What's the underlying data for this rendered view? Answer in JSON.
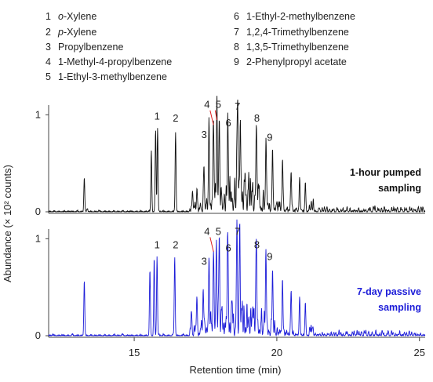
{
  "legend": {
    "items": [
      {
        "num": "1",
        "name": "o-Xylene"
      },
      {
        "num": "2",
        "name": "p-Xylene"
      },
      {
        "num": "3",
        "name": "Propylbenzene"
      },
      {
        "num": "4",
        "name": "1-Methyl-4-propylbenzene"
      },
      {
        "num": "5",
        "name": "1-Ethyl-3-methylbenzene"
      },
      {
        "num": "6",
        "name": "1-Ethyl-2-methylbenzene"
      },
      {
        "num": "7",
        "name": "1,2,4-Trimethylbenzene"
      },
      {
        "num": "8",
        "name": "1,3,5-Trimethylbenzene"
      },
      {
        "num": "9",
        "name": "2-Phenylpropyl acetate"
      }
    ]
  },
  "chart_data": {
    "type": "line",
    "xlabel": "Retention time (min)",
    "ylabel": "Abundance (× 10² counts)",
    "xlim": [
      12,
      25.2
    ],
    "x_ticks": [
      "15",
      "20",
      "25"
    ],
    "x_tick_values": [
      15,
      20,
      25
    ],
    "panels": [
      {
        "title_line1": "1-hour pumped",
        "title_line2": "sampling",
        "color": "#111111",
        "ylim": [
          0,
          1.1
        ],
        "y_ticks": [
          "0",
          "1"
        ],
        "y_tick_values": [
          0,
          1
        ],
        "peaks": [
          {
            "x": 13.25,
            "y": 0.36
          },
          {
            "x": 13.35,
            "y": 0.02
          },
          {
            "x": 15.6,
            "y": 0.63
          },
          {
            "x": 15.75,
            "y": 0.85
          },
          {
            "x": 15.82,
            "y": 0.87
          },
          {
            "x": 16.45,
            "y": 0.83
          },
          {
            "x": 17.05,
            "y": 0.15
          },
          {
            "x": 17.2,
            "y": 0.22
          },
          {
            "x": 17.45,
            "y": 0.35
          },
          {
            "x": 17.62,
            "y": 0.73
          },
          {
            "x": 17.78,
            "y": 0.88
          },
          {
            "x": 17.9,
            "y": 0.93
          },
          {
            "x": 17.98,
            "y": 0.9
          },
          {
            "x": 18.28,
            "y": 0.83
          },
          {
            "x": 18.62,
            "y": 0.98
          },
          {
            "x": 18.72,
            "y": 0.9
          },
          {
            "x": 19.28,
            "y": 0.88
          },
          {
            "x": 19.62,
            "y": 0.73
          },
          {
            "x": 19.85,
            "y": 0.65
          },
          {
            "x": 20.2,
            "y": 0.5
          },
          {
            "x": 20.5,
            "y": 0.4
          },
          {
            "x": 20.8,
            "y": 0.35
          },
          {
            "x": 21.0,
            "y": 0.3
          }
        ],
        "labels": [
          {
            "text": "1",
            "x": 15.8,
            "y": 0.95
          },
          {
            "text": "2",
            "x": 16.45,
            "y": 0.93
          },
          {
            "text": "3",
            "x": 17.45,
            "y": 0.76
          },
          {
            "text": "4",
            "x": 17.55,
            "y": 1.07
          },
          {
            "text": "5",
            "x": 17.95,
            "y": 1.07
          },
          {
            "text": "6",
            "x": 18.3,
            "y": 0.88
          },
          {
            "text": "7",
            "x": 18.62,
            "y": 1.05
          },
          {
            "text": "8",
            "x": 19.3,
            "y": 0.93
          },
          {
            "text": "9",
            "x": 19.75,
            "y": 0.73
          }
        ]
      },
      {
        "title_line1": "7-day passive",
        "title_line2": "sampling",
        "color": "#1c1cd8",
        "ylim": [
          0,
          1.1
        ],
        "y_ticks": [
          "0",
          "1"
        ],
        "y_tick_values": [
          0,
          1
        ],
        "peaks": [
          {
            "x": 13.25,
            "y": 0.58
          },
          {
            "x": 15.55,
            "y": 0.67
          },
          {
            "x": 15.7,
            "y": 0.8
          },
          {
            "x": 15.8,
            "y": 0.82
          },
          {
            "x": 16.42,
            "y": 0.82
          },
          {
            "x": 17.0,
            "y": 0.22
          },
          {
            "x": 17.2,
            "y": 0.3
          },
          {
            "x": 17.42,
            "y": 0.45
          },
          {
            "x": 17.62,
            "y": 0.73
          },
          {
            "x": 17.78,
            "y": 0.85
          },
          {
            "x": 17.88,
            "y": 0.9
          },
          {
            "x": 17.98,
            "y": 0.92
          },
          {
            "x": 18.28,
            "y": 0.83
          },
          {
            "x": 18.6,
            "y": 1.0
          },
          {
            "x": 18.7,
            "y": 0.92
          },
          {
            "x": 19.28,
            "y": 0.87
          },
          {
            "x": 19.62,
            "y": 0.78
          },
          {
            "x": 19.85,
            "y": 0.65
          },
          {
            "x": 20.2,
            "y": 0.55
          },
          {
            "x": 20.5,
            "y": 0.45
          },
          {
            "x": 20.8,
            "y": 0.4
          },
          {
            "x": 21.0,
            "y": 0.33
          }
        ],
        "labels": [
          {
            "text": "1",
            "x": 15.8,
            "y": 0.9
          },
          {
            "text": "2",
            "x": 16.45,
            "y": 0.9
          },
          {
            "text": "3",
            "x": 17.45,
            "y": 0.73
          },
          {
            "text": "4",
            "x": 17.55,
            "y": 1.04
          },
          {
            "text": "5",
            "x": 17.95,
            "y": 1.04
          },
          {
            "text": "6",
            "x": 18.3,
            "y": 0.87
          },
          {
            "text": "7",
            "x": 18.62,
            "y": 1.04
          },
          {
            "text": "8",
            "x": 19.3,
            "y": 0.9
          },
          {
            "text": "9",
            "x": 19.75,
            "y": 0.78
          }
        ]
      }
    ],
    "grid": false
  }
}
